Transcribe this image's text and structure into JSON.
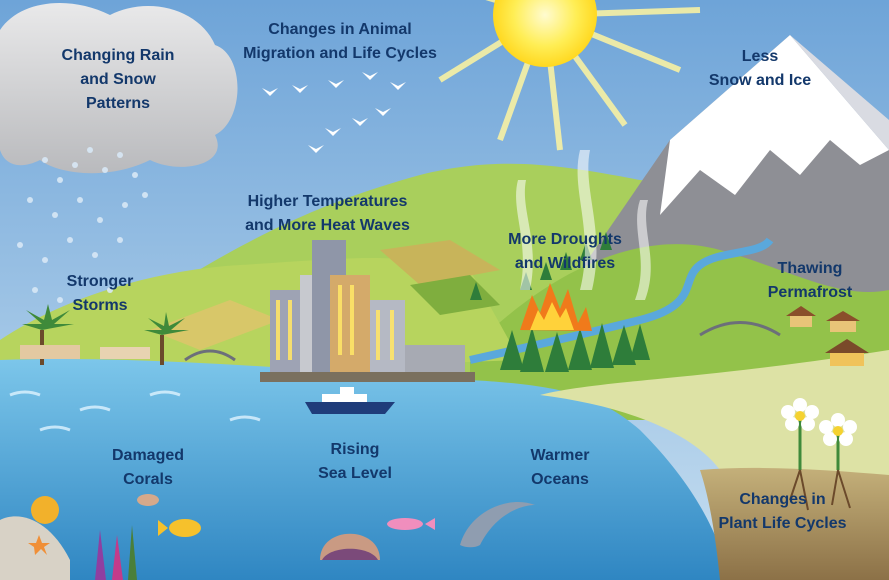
{
  "colors": {
    "sky_top": "#6fa6da",
    "sky_bottom": "#c3dcef",
    "water": "#4aa4d4",
    "label_text": "#13386b",
    "sun": "#ffe437",
    "hill_green": "#9cc64a",
    "soil": "#a68a58"
  },
  "labels": {
    "rain_snow": [
      "Changing Rain",
      "and Snow",
      "Patterns"
    ],
    "animal_migration": [
      "Changes in Animal",
      "Migration and Life Cycles"
    ],
    "less_snow": [
      "Less",
      "Snow and Ice"
    ],
    "heat_waves": [
      "Higher Temperatures",
      "and More Heat Waves"
    ],
    "droughts": [
      "More Droughts",
      "and Wildfires"
    ],
    "storms": [
      "Stronger",
      "Storms"
    ],
    "permafrost": [
      "Thawing",
      "Permafrost"
    ],
    "corals": [
      "Damaged",
      "Corals"
    ],
    "sea_level": [
      "Rising",
      "Sea Level"
    ],
    "oceans": [
      "Warmer",
      "Oceans"
    ],
    "plant_cycles": [
      "Changes in",
      "Plant Life Cycles"
    ]
  }
}
